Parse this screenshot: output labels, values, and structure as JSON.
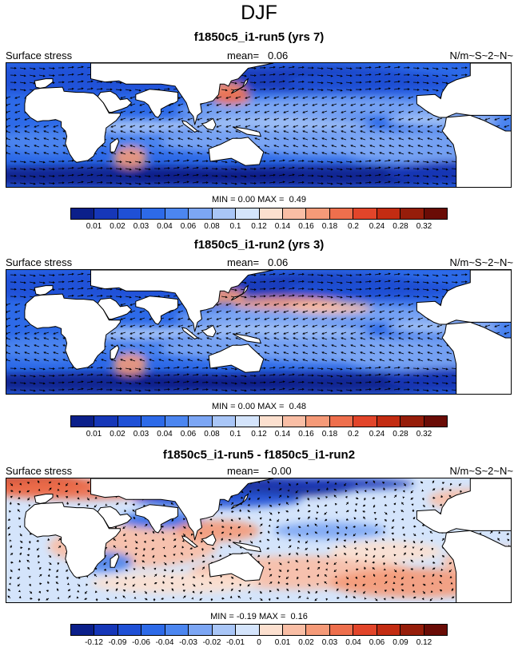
{
  "page_title": "DJF",
  "panels": [
    {
      "title": "f1850c5_i1-run5 (yrs 7)",
      "left_label": "Surface stress",
      "mean_label": "mean=",
      "mean_value": "0.06",
      "units": "N/m~S~2~N~",
      "min_label": "MIN =",
      "min_value": "0.00",
      "max_label": "MAX =",
      "max_value": "0.49",
      "colorbar_ticks": [
        "0.01",
        "0.02",
        "0.03",
        "0.04",
        "0.06",
        "0.08",
        "0.1",
        "0.12",
        "0.14",
        "0.16",
        "0.18",
        "0.2",
        "0.24",
        "0.28",
        "0.32"
      ],
      "colors": [
        "#0b1f8a",
        "#1637b8",
        "#1f50d6",
        "#2d6ae8",
        "#4c86f0",
        "#7ca6f4",
        "#a9c6f7",
        "#d4e4fb",
        "#fce0cf",
        "#f9bea5",
        "#f59a78",
        "#ee6f4d",
        "#e2452a",
        "#c32c12",
        "#961d0a",
        "#6a0c06"
      ]
    },
    {
      "title": "f1850c5_i1-run2 (yrs 3)",
      "left_label": "Surface stress",
      "mean_label": "mean=",
      "mean_value": "0.06",
      "units": "N/m~S~2~N~",
      "min_label": "MIN =",
      "min_value": "0.00",
      "max_label": "MAX =",
      "max_value": "0.48",
      "colorbar_ticks": [
        "0.01",
        "0.02",
        "0.03",
        "0.04",
        "0.06",
        "0.08",
        "0.1",
        "0.12",
        "0.14",
        "0.16",
        "0.18",
        "0.2",
        "0.24",
        "0.28",
        "0.32"
      ],
      "colors": [
        "#0b1f8a",
        "#1637b8",
        "#1f50d6",
        "#2d6ae8",
        "#4c86f0",
        "#7ca6f4",
        "#a9c6f7",
        "#d4e4fb",
        "#fce0cf",
        "#f9bea5",
        "#f59a78",
        "#ee6f4d",
        "#e2452a",
        "#c32c12",
        "#961d0a",
        "#6a0c06"
      ]
    },
    {
      "title": "f1850c5_i1-run5 - f1850c5_i1-run2",
      "left_label": "Surface stress",
      "mean_label": "mean=",
      "mean_value": "-0.00",
      "units": "N/m~S~2~N~",
      "min_label": "MIN =",
      "min_value": "-0.19",
      "max_label": "MAX =",
      "max_value": "0.16",
      "colorbar_ticks": [
        "-0.12",
        "-0.09",
        "-0.06",
        "-0.04",
        "-0.03",
        "-0.02",
        "-0.01",
        "0",
        "0.01",
        "0.02",
        "0.03",
        "0.04",
        "0.06",
        "0.09",
        "0.12"
      ],
      "colors": [
        "#0b1f8a",
        "#1637b8",
        "#1f50d6",
        "#2d6ae8",
        "#4c86f0",
        "#7ca6f4",
        "#a9c6f7",
        "#d4e4fb",
        "#fce0cf",
        "#f9bea5",
        "#f59a78",
        "#ee6f4d",
        "#e2452a",
        "#c32c12",
        "#961d0a",
        "#6a0c06"
      ]
    }
  ],
  "chart_data": [
    {
      "type": "heatmap",
      "title": "f1850c5_i1-run5 (yrs 7)",
      "variable": "Surface stress",
      "units": "N/m~S~2~N~",
      "mean": 0.06,
      "min": 0.0,
      "max": 0.49,
      "levels": [
        0.01,
        0.02,
        0.03,
        0.04,
        0.06,
        0.08,
        0.1,
        0.12,
        0.14,
        0.16,
        0.18,
        0.2,
        0.24,
        0.28,
        0.32
      ]
    },
    {
      "type": "heatmap",
      "title": "f1850c5_i1-run2 (yrs 3)",
      "variable": "Surface stress",
      "units": "N/m~S~2~N~",
      "mean": 0.06,
      "min": 0.0,
      "max": 0.48,
      "levels": [
        0.01,
        0.02,
        0.03,
        0.04,
        0.06,
        0.08,
        0.1,
        0.12,
        0.14,
        0.16,
        0.18,
        0.2,
        0.24,
        0.28,
        0.32
      ]
    },
    {
      "type": "heatmap",
      "title": "f1850c5_i1-run5 - f1850c5_i1-run2",
      "variable": "Surface stress",
      "units": "N/m~S~2~N~",
      "mean": -0.0,
      "min": -0.19,
      "max": 0.16,
      "levels": [
        -0.12,
        -0.09,
        -0.06,
        -0.04,
        -0.03,
        -0.02,
        -0.01,
        0,
        0.01,
        0.02,
        0.03,
        0.04,
        0.06,
        0.09,
        0.12
      ]
    }
  ]
}
